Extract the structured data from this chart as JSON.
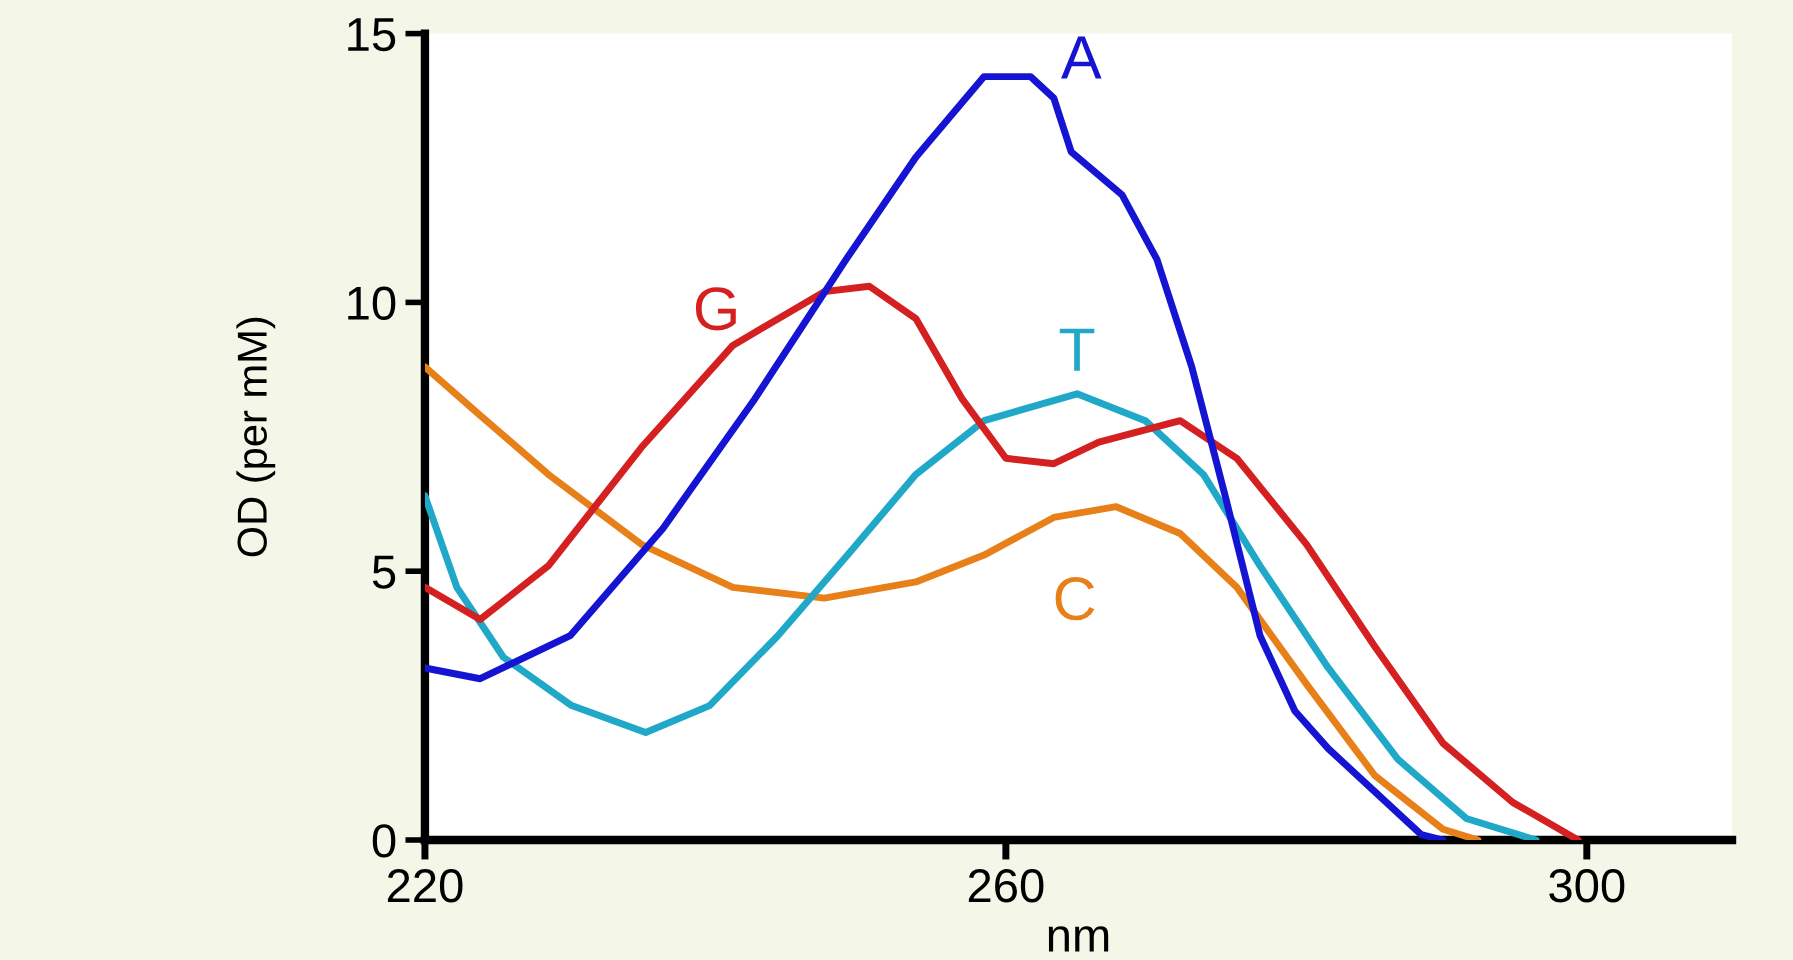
{
  "chart_data": {
    "type": "line",
    "xlabel": "nm",
    "ylabel": "OD (per mM)",
    "xlim": [
      220,
      310
    ],
    "ylim": [
      0,
      15
    ],
    "xticks": [
      220,
      260,
      300
    ],
    "yticks": [
      0,
      5,
      10,
      15
    ],
    "grid": false,
    "legend": false,
    "marker": "none",
    "line_style": "solid",
    "series": [
      {
        "name": "A",
        "color": "#1414d2",
        "x": [
          220,
          223.8,
          230,
          236.4,
          242.7,
          249,
          253.8,
          258.5,
          261.7,
          263.3,
          264.5,
          268,
          270.4,
          272.8,
          275.1,
          277.5,
          279.9,
          282.2,
          285.4,
          288.6,
          290.1
        ],
        "values": [
          3.2,
          3.0,
          3.8,
          5.8,
          8.2,
          10.8,
          12.7,
          14.2,
          14.2,
          13.8,
          12.8,
          12.0,
          10.8,
          8.8,
          6.4,
          3.8,
          2.4,
          1.7,
          0.9,
          0.1,
          0
        ]
      },
      {
        "name": "G",
        "color": "#d42020",
        "x": [
          220,
          223.8,
          228.5,
          234.9,
          241.2,
          247.5,
          250.6,
          253.8,
          257,
          260,
          263.3,
          266.4,
          272,
          275.9,
          280.7,
          285.4,
          290.1,
          294.9,
          299.4
        ],
        "values": [
          4.7,
          4.1,
          5.1,
          7.3,
          9.2,
          10.2,
          10.3,
          9.7,
          8.2,
          7.1,
          7.0,
          7.4,
          7.8,
          7.1,
          5.5,
          3.6,
          1.8,
          0.7,
          0
        ]
      },
      {
        "name": "T",
        "color": "#20a8c8",
        "x": [
          220,
          222.2,
          225.4,
          230.1,
          235.2,
          239.6,
          244.3,
          249.1,
          253.8,
          258.5,
          264.9,
          269.6,
          273.6,
          277.5,
          282.2,
          287,
          291.7,
          296.5
        ],
        "values": [
          6.4,
          4.7,
          3.4,
          2.5,
          2.0,
          2.5,
          3.8,
          5.3,
          6.8,
          7.8,
          8.3,
          7.8,
          6.8,
          5.1,
          3.2,
          1.5,
          0.4,
          0
        ]
      },
      {
        "name": "C",
        "color": "#e8801a",
        "x": [
          220,
          223.8,
          228.5,
          234.9,
          241.2,
          247.5,
          253.8,
          258.5,
          263.3,
          267.6,
          272,
          275.9,
          280.7,
          285.4,
          290.1,
          292.5
        ],
        "values": [
          8.8,
          7.9,
          6.8,
          5.5,
          4.7,
          4.5,
          4.8,
          5.3,
          6.0,
          6.2,
          5.7,
          4.7,
          2.9,
          1.2,
          0.2,
          0
        ]
      }
    ]
  }
}
